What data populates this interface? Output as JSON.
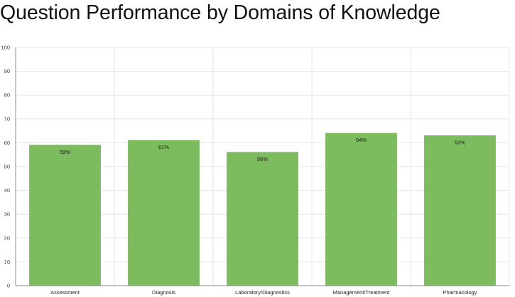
{
  "chart_data": {
    "type": "bar",
    "title": "Question Performance by Domains of Knowledge",
    "categories": [
      "Assessment",
      "Diagnosis",
      "Laboratory/Diagnostics",
      "Management/Treatment",
      "Pharmacology"
    ],
    "values": [
      59,
      61,
      56,
      64,
      63
    ],
    "data_labels": [
      "59%",
      "61%",
      "56%",
      "64%",
      "63%"
    ],
    "ylim": [
      0,
      100
    ],
    "yticks": [
      "0",
      "10",
      "20",
      "30",
      "40",
      "50",
      "60",
      "70",
      "80",
      "90",
      "100"
    ],
    "xlabel": "",
    "ylabel": "",
    "grid": true,
    "legend": "none",
    "bar_color": "#7cbb5e"
  }
}
